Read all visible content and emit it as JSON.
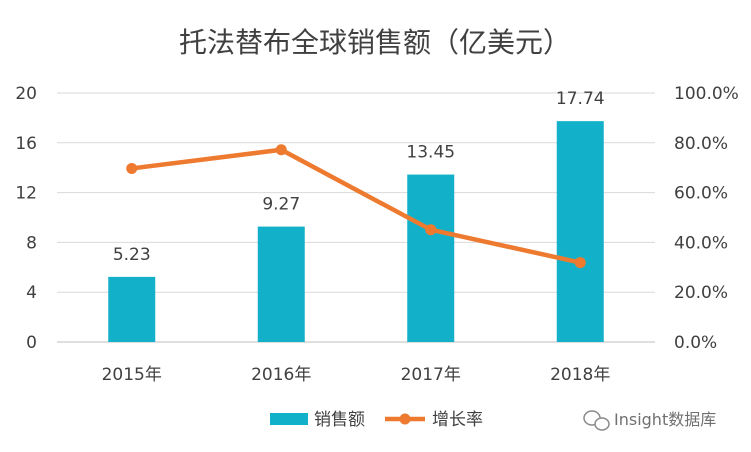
{
  "chart_data": {
    "type": "bar",
    "title": "托法替布全球销售额（亿美元）",
    "categories": [
      "2015年",
      "2016年",
      "2017年",
      "2018年"
    ],
    "series": [
      {
        "name": "销售额",
        "type": "bar",
        "axis": "left",
        "values": [
          5.23,
          9.27,
          13.45,
          17.74
        ],
        "color": "#12b1c9"
      },
      {
        "name": "增长率",
        "type": "line",
        "axis": "right",
        "values": [
          69.7,
          77.2,
          45.1,
          31.9
        ],
        "color": "#ee7a2f"
      }
    ],
    "data_labels": [
      "5.23",
      "9.27",
      "13.45",
      "17.74"
    ],
    "ylim_left": [
      0,
      20
    ],
    "yticks_left": [
      "0",
      "4",
      "8",
      "12",
      "16",
      "20"
    ],
    "ylim_right": [
      0,
      100
    ],
    "yticks_right": [
      "0.0%",
      "20.0%",
      "40.0%",
      "60.0%",
      "80.0%",
      "100.0%"
    ],
    "grid": true,
    "legend_position": "bottom"
  },
  "watermark": {
    "text": "Insight数据库",
    "icon": "wechat-icon"
  }
}
